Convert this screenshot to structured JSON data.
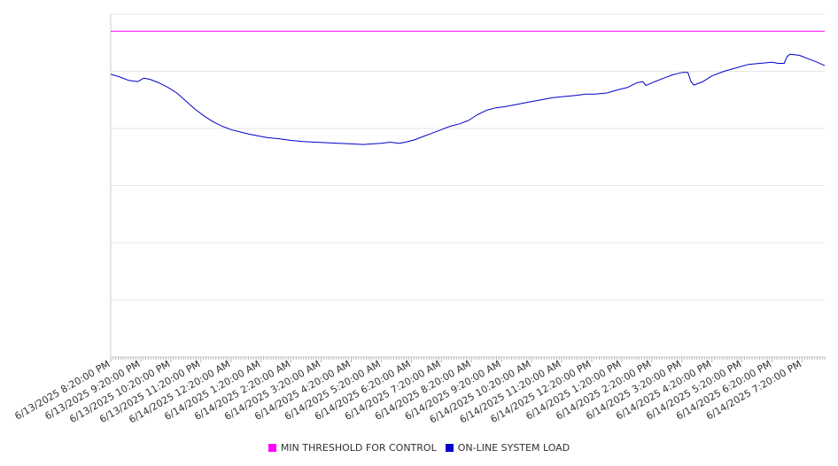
{
  "chart_data": {
    "type": "line",
    "title": "",
    "xlabel": "",
    "ylabel": "",
    "grid": true,
    "legend_position": "bottom",
    "y_tick_labels_shown": false,
    "x_tick_labels": [
      "6/13/2025 8:20:00 PM",
      "6/13/2025 9:20:00 PM",
      "6/13/2025 10:20:00 PM",
      "6/13/2025 11:20:00 PM",
      "6/14/2025 12:20:00 AM",
      "6/14/2025 1:20:00 AM",
      "6/14/2025 2:20:00 AM",
      "6/14/2025 3:20:00 AM",
      "6/14/2025 4:20:00 AM",
      "6/14/2025 5:20:00 AM",
      "6/14/2025 6:20:00 AM",
      "6/14/2025 7:20:00 AM",
      "6/14/2025 8:20:00 AM",
      "6/14/2025 9:20:00 AM",
      "6/14/2025 10:20:00 AM",
      "6/14/2025 11:20:00 AM",
      "6/14/2025 12:20:00 PM",
      "6/14/2025 1:20:00 PM",
      "6/14/2025 2:20:00 PM",
      "6/14/2025 3:20:00 PM",
      "6/14/2025 4:20:00 PM",
      "6/14/2025 5:20:00 PM",
      "6/14/2025 6:20:00 PM",
      "6/14/2025 7:20:00 PM"
    ],
    "x_range_hours": [
      0,
      23.75
    ],
    "y_range": [
      0,
      6
    ],
    "series": [
      {
        "name": "MIN THRESHOLD FOR CONTROL",
        "color": "#ff00ff",
        "points": [
          [
            0,
            5.7
          ],
          [
            23.75,
            5.7
          ]
        ]
      },
      {
        "name": "ON-LINE SYSTEM LOAD",
        "color": "#0000cc",
        "points": [
          [
            0,
            4.95
          ],
          [
            0.3,
            4.9
          ],
          [
            0.6,
            4.84
          ],
          [
            0.9,
            4.82
          ],
          [
            1.1,
            4.88
          ],
          [
            1.3,
            4.86
          ],
          [
            1.6,
            4.8
          ],
          [
            1.9,
            4.72
          ],
          [
            2.2,
            4.62
          ],
          [
            2.5,
            4.48
          ],
          [
            2.8,
            4.34
          ],
          [
            3.1,
            4.22
          ],
          [
            3.4,
            4.12
          ],
          [
            3.7,
            4.04
          ],
          [
            4.0,
            3.98
          ],
          [
            4.3,
            3.94
          ],
          [
            4.6,
            3.9
          ],
          [
            4.9,
            3.87
          ],
          [
            5.2,
            3.84
          ],
          [
            5.6,
            3.82
          ],
          [
            6.0,
            3.79
          ],
          [
            6.4,
            3.77
          ],
          [
            6.8,
            3.76
          ],
          [
            7.2,
            3.75
          ],
          [
            7.6,
            3.74
          ],
          [
            8.0,
            3.73
          ],
          [
            8.4,
            3.72
          ],
          [
            8.7,
            3.73
          ],
          [
            9.0,
            3.74
          ],
          [
            9.3,
            3.76
          ],
          [
            9.6,
            3.74
          ],
          [
            9.8,
            3.76
          ],
          [
            10.1,
            3.8
          ],
          [
            10.4,
            3.86
          ],
          [
            10.7,
            3.92
          ],
          [
            11.0,
            3.98
          ],
          [
            11.3,
            4.04
          ],
          [
            11.6,
            4.08
          ],
          [
            11.9,
            4.14
          ],
          [
            12.2,
            4.24
          ],
          [
            12.5,
            4.32
          ],
          [
            12.8,
            4.36
          ],
          [
            13.1,
            4.38
          ],
          [
            13.5,
            4.42
          ],
          [
            13.9,
            4.46
          ],
          [
            14.3,
            4.5
          ],
          [
            14.7,
            4.54
          ],
          [
            15.1,
            4.56
          ],
          [
            15.5,
            4.58
          ],
          [
            15.8,
            4.6
          ],
          [
            16.1,
            4.6
          ],
          [
            16.5,
            4.62
          ],
          [
            16.9,
            4.68
          ],
          [
            17.2,
            4.72
          ],
          [
            17.5,
            4.8
          ],
          [
            17.7,
            4.82
          ],
          [
            17.8,
            4.75
          ],
          [
            18.1,
            4.82
          ],
          [
            18.4,
            4.88
          ],
          [
            18.7,
            4.94
          ],
          [
            19.0,
            4.98
          ],
          [
            19.2,
            4.98
          ],
          [
            19.3,
            4.82
          ],
          [
            19.4,
            4.76
          ],
          [
            19.7,
            4.82
          ],
          [
            20.0,
            4.92
          ],
          [
            20.4,
            5.0
          ],
          [
            20.8,
            5.06
          ],
          [
            21.2,
            5.12
          ],
          [
            21.6,
            5.14
          ],
          [
            22.0,
            5.16
          ],
          [
            22.2,
            5.14
          ],
          [
            22.4,
            5.14
          ],
          [
            22.5,
            5.26
          ],
          [
            22.6,
            5.3
          ],
          [
            22.9,
            5.28
          ],
          [
            23.2,
            5.22
          ],
          [
            23.5,
            5.16
          ],
          [
            23.75,
            5.1
          ]
        ]
      }
    ]
  }
}
